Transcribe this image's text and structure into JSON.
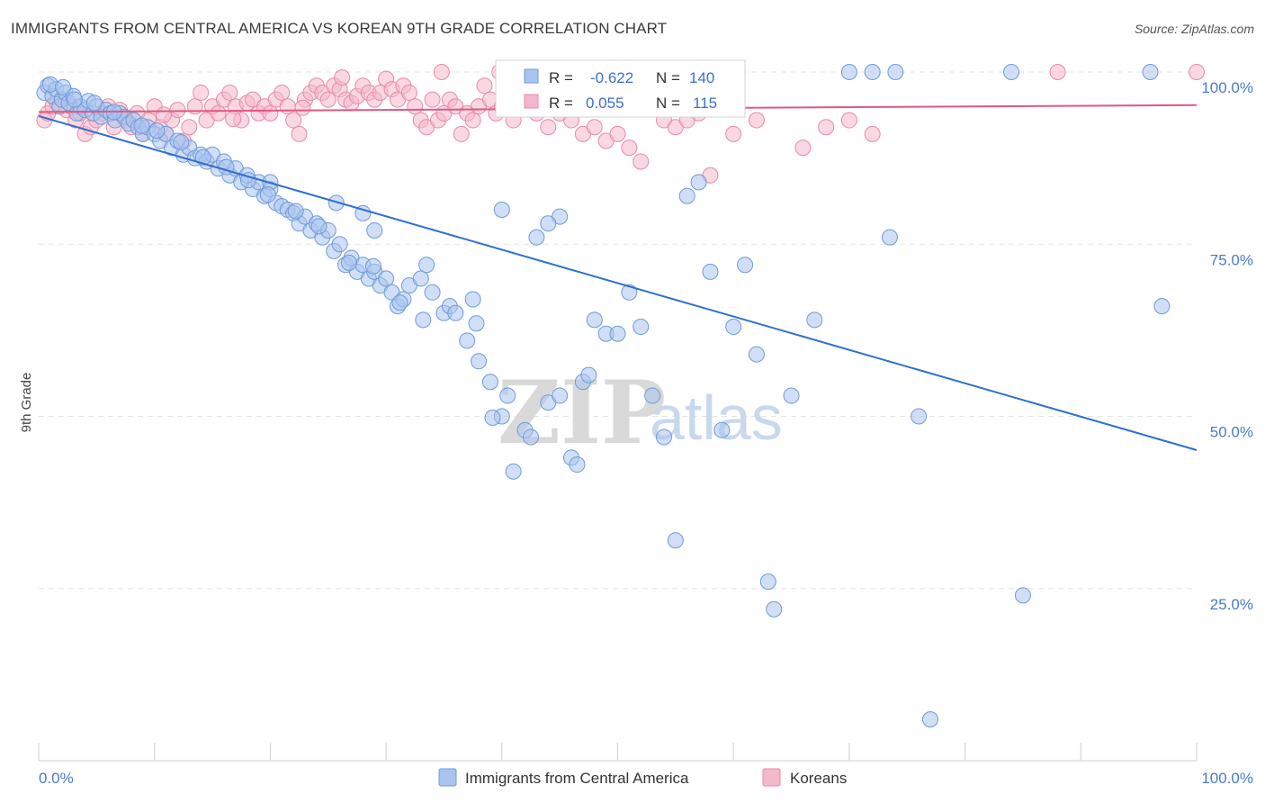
{
  "title": "IMMIGRANTS FROM CENTRAL AMERICA VS KOREAN 9TH GRADE CORRELATION CHART",
  "source": "Source: ZipAtlas.com",
  "watermark": {
    "zip": "ZIP",
    "atlas": "atlas"
  },
  "colors": {
    "blue_fill": "#a9c4ee",
    "blue_stroke": "#6f9ad9",
    "blue_line": "#2f6fcf",
    "pink_fill": "#f4b8cb",
    "pink_stroke": "#e88aa8",
    "pink_line": "#e0587f",
    "grid": "#e3e3e3",
    "tick_label": "#4a7bc8"
  },
  "stats": [
    {
      "r_label": "R =",
      "r_value": "-0.622",
      "n_label": "N =",
      "n_value": "140"
    },
    {
      "r_label": "R =",
      "r_value": "0.055",
      "n_label": "N =",
      "n_value": "115"
    }
  ],
  "chart_data": {
    "type": "scatter",
    "title": "IMMIGRANTS FROM CENTRAL AMERICA VS KOREAN 9TH GRADE CORRELATION CHART",
    "xlabel": "",
    "ylabel": "9th Grade",
    "xlim": [
      0,
      100
    ],
    "ylim": [
      0,
      100
    ],
    "x_tick_labels": [
      "0.0%",
      "100.0%"
    ],
    "y_ticks": [
      25,
      50,
      75,
      100
    ],
    "y_tick_labels": [
      "25.0%",
      "50.0%",
      "75.0%",
      "100.0%"
    ],
    "grid": true,
    "legend_position": "bottom-center",
    "series": [
      {
        "name": "Immigrants from Central America",
        "trend": {
          "x": [
            0,
            100
          ],
          "y": [
            93.6,
            45.1
          ]
        },
        "points": [
          [
            0.5,
            97
          ],
          [
            0.8,
            98
          ],
          [
            1.2,
            96.5
          ],
          [
            1.5,
            97.5
          ],
          [
            1.8,
            95
          ],
          [
            2,
            96
          ],
          [
            2.3,
            97
          ],
          [
            2.6,
            95.5
          ],
          [
            3,
            96.5
          ],
          [
            3.3,
            94
          ],
          [
            3.6,
            95
          ],
          [
            4,
            94.5
          ],
          [
            4.3,
            95.8
          ],
          [
            4.7,
            94
          ],
          [
            5,
            95
          ],
          [
            5.4,
            93.5
          ],
          [
            5.8,
            94.5
          ],
          [
            6.2,
            94
          ],
          [
            6.6,
            93
          ],
          [
            7,
            94
          ],
          [
            7.4,
            93.5
          ],
          [
            7.8,
            92.5
          ],
          [
            8.2,
            93
          ],
          [
            8.6,
            92
          ],
          [
            9,
            91
          ],
          [
            9.4,
            92
          ],
          [
            10,
            91
          ],
          [
            10.5,
            90
          ],
          [
            11,
            91
          ],
          [
            11.5,
            89
          ],
          [
            12,
            90
          ],
          [
            12.5,
            88
          ],
          [
            13,
            89
          ],
          [
            13.5,
            87.5
          ],
          [
            14,
            88
          ],
          [
            14.5,
            87
          ],
          [
            15,
            88
          ],
          [
            15.5,
            86
          ],
          [
            16,
            87
          ],
          [
            16.5,
            85
          ],
          [
            17,
            86
          ],
          [
            17.5,
            84
          ],
          [
            18,
            85
          ],
          [
            18.5,
            83
          ],
          [
            19,
            84
          ],
          [
            19.5,
            82
          ],
          [
            20,
            83
          ],
          [
            20.5,
            81
          ],
          [
            21,
            80.5
          ],
          [
            21.5,
            80
          ],
          [
            22,
            79.5
          ],
          [
            22.5,
            78
          ],
          [
            23,
            79
          ],
          [
            23.5,
            77
          ],
          [
            24,
            78
          ],
          [
            24.5,
            76
          ],
          [
            25,
            77
          ],
          [
            25.5,
            74
          ],
          [
            26,
            75
          ],
          [
            26.5,
            72
          ],
          [
            27,
            73
          ],
          [
            27.5,
            71
          ],
          [
            28,
            72
          ],
          [
            28.5,
            70
          ],
          [
            29,
            71
          ],
          [
            29.5,
            69
          ],
          [
            30,
            70
          ],
          [
            30.5,
            68
          ],
          [
            31,
            66
          ],
          [
            31.5,
            67
          ],
          [
            32,
            69
          ],
          [
            33,
            70
          ],
          [
            33.5,
            72
          ],
          [
            34,
            68
          ],
          [
            35,
            65
          ],
          [
            35.5,
            66
          ],
          [
            36,
            65
          ],
          [
            37,
            61
          ],
          [
            37.5,
            67
          ],
          [
            38,
            58
          ],
          [
            39,
            55
          ],
          [
            40,
            50
          ],
          [
            40.5,
            53
          ],
          [
            41,
            42
          ],
          [
            42,
            48
          ],
          [
            43,
            76
          ],
          [
            44,
            52
          ],
          [
            45,
            53
          ],
          [
            46,
            44
          ],
          [
            46.5,
            43
          ],
          [
            47,
            55
          ],
          [
            48,
            64
          ],
          [
            49,
            62
          ],
          [
            50,
            62
          ],
          [
            51,
            68
          ],
          [
            52,
            63
          ],
          [
            53,
            53
          ],
          [
            54,
            47
          ],
          [
            55,
            32
          ],
          [
            56,
            82
          ],
          [
            57,
            84
          ],
          [
            58,
            71
          ],
          [
            59,
            48
          ],
          [
            60,
            63
          ],
          [
            61,
            72
          ],
          [
            62,
            59
          ],
          [
            63,
            26
          ],
          [
            63.5,
            22
          ],
          [
            65,
            53
          ],
          [
            67,
            64
          ],
          [
            73.5,
            76
          ],
          [
            76,
            50
          ],
          [
            77,
            6
          ],
          [
            85,
            24
          ],
          [
            97,
            66
          ],
          [
            45,
            79
          ],
          [
            44,
            78
          ],
          [
            40,
            80
          ],
          [
            25.7,
            81
          ],
          [
            28,
            79.5
          ],
          [
            29,
            77
          ],
          [
            20,
            84
          ],
          [
            1,
            98.2
          ],
          [
            2.1,
            97.8
          ],
          [
            3.1,
            96
          ],
          [
            4.8,
            95.5
          ],
          [
            6.5,
            94.2
          ],
          [
            8.9,
            92.2
          ],
          [
            10.2,
            91.5
          ],
          [
            12.3,
            89.8
          ],
          [
            14.2,
            87.6
          ],
          [
            16.2,
            86.2
          ],
          [
            18.1,
            84.3
          ],
          [
            19.8,
            82.2
          ],
          [
            22.2,
            79.8
          ],
          [
            24.2,
            77.6
          ],
          [
            26.8,
            72.3
          ],
          [
            28.9,
            71.8
          ],
          [
            31.2,
            66.5
          ],
          [
            33.2,
            64
          ],
          [
            37.8,
            63.5
          ],
          [
            39.2,
            49.8
          ],
          [
            42.5,
            47
          ],
          [
            47.5,
            56
          ],
          [
            70,
            100
          ],
          [
            72,
            100
          ],
          [
            74,
            100
          ],
          [
            84,
            100
          ],
          [
            96,
            100
          ],
          [
            54,
            100
          ]
        ]
      },
      {
        "name": "Koreans",
        "trend": {
          "x": [
            0,
            100
          ],
          "y": [
            94.2,
            95.2
          ]
        },
        "points": [
          [
            0.5,
            93
          ],
          [
            0.8,
            94
          ],
          [
            1.2,
            95
          ],
          [
            1.6,
            95.5
          ],
          [
            2,
            96
          ],
          [
            2.4,
            94.5
          ],
          [
            2.8,
            95
          ],
          [
            3.2,
            93
          ],
          [
            3.6,
            94
          ],
          [
            4,
            91
          ],
          [
            4.5,
            92
          ],
          [
            5,
            93
          ],
          [
            5.5,
            94
          ],
          [
            6,
            95
          ],
          [
            6.5,
            92
          ],
          [
            7,
            94.5
          ],
          [
            7.5,
            93
          ],
          [
            8,
            92
          ],
          [
            8.5,
            94
          ],
          [
            9,
            91
          ],
          [
            9.5,
            93
          ],
          [
            10,
            95
          ],
          [
            10.5,
            92
          ],
          [
            11,
            91
          ],
          [
            11.5,
            93
          ],
          [
            12,
            94.5
          ],
          [
            12.5,
            90
          ],
          [
            13,
            92
          ],
          [
            13.5,
            95
          ],
          [
            14,
            97
          ],
          [
            14.5,
            93
          ],
          [
            15,
            95
          ],
          [
            15.5,
            94
          ],
          [
            16,
            96
          ],
          [
            16.5,
            97
          ],
          [
            17,
            95
          ],
          [
            17.5,
            93
          ],
          [
            18,
            95.5
          ],
          [
            18.5,
            96
          ],
          [
            19,
            94
          ],
          [
            19.5,
            95
          ],
          [
            20,
            94
          ],
          [
            20.5,
            96
          ],
          [
            21,
            97
          ],
          [
            21.5,
            95
          ],
          [
            22,
            93
          ],
          [
            22.5,
            91
          ],
          [
            23,
            96
          ],
          [
            23.5,
            97
          ],
          [
            24,
            98
          ],
          [
            24.5,
            97
          ],
          [
            25,
            96
          ],
          [
            25.5,
            98
          ],
          [
            26,
            97.5
          ],
          [
            26.5,
            96
          ],
          [
            27,
            95.5
          ],
          [
            27.5,
            96.5
          ],
          [
            28,
            98
          ],
          [
            28.5,
            97
          ],
          [
            29,
            96
          ],
          [
            29.5,
            97
          ],
          [
            30,
            99
          ],
          [
            30.5,
            97.5
          ],
          [
            31,
            96
          ],
          [
            31.5,
            98
          ],
          [
            32,
            97
          ],
          [
            32.5,
            95
          ],
          [
            33,
            93
          ],
          [
            33.5,
            92
          ],
          [
            34,
            96
          ],
          [
            34.5,
            93
          ],
          [
            35,
            94
          ],
          [
            35.5,
            96
          ],
          [
            36,
            95
          ],
          [
            36.5,
            91
          ],
          [
            37,
            94
          ],
          [
            37.5,
            93
          ],
          [
            38,
            95
          ],
          [
            38.5,
            98
          ],
          [
            39,
            96
          ],
          [
            39.5,
            94
          ],
          [
            40,
            95
          ],
          [
            41,
            93
          ],
          [
            42,
            95
          ],
          [
            43,
            94
          ],
          [
            44,
            92
          ],
          [
            45,
            94
          ],
          [
            46,
            93
          ],
          [
            47,
            91
          ],
          [
            48,
            92
          ],
          [
            49,
            90
          ],
          [
            50,
            91
          ],
          [
            51,
            89
          ],
          [
            52,
            87
          ],
          [
            53,
            95
          ],
          [
            54,
            93
          ],
          [
            55,
            92
          ],
          [
            56,
            93
          ],
          [
            57,
            94
          ],
          [
            58,
            85
          ],
          [
            60,
            91
          ],
          [
            62,
            93
          ],
          [
            66,
            89
          ],
          [
            68,
            92
          ],
          [
            70,
            93
          ],
          [
            72,
            91
          ],
          [
            88,
            100
          ],
          [
            100,
            100
          ],
          [
            10.8,
            93.8
          ],
          [
            16.8,
            93.2
          ],
          [
            22.8,
            94.8
          ],
          [
            26.2,
            99.2
          ],
          [
            34.8,
            100
          ],
          [
            39.8,
            100
          ]
        ]
      }
    ]
  },
  "legend": [
    {
      "label": "Immigrants from Central America"
    },
    {
      "label": "Koreans"
    }
  ]
}
